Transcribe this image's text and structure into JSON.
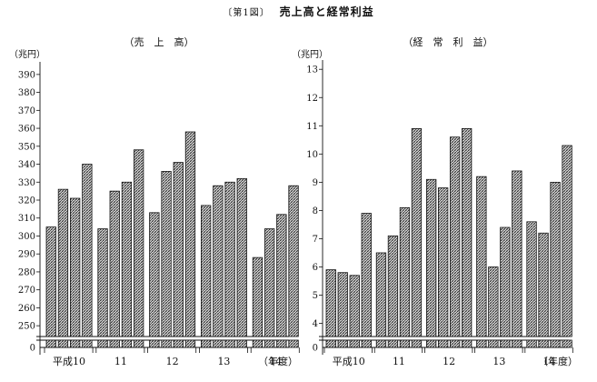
{
  "figure": {
    "tag": "〔第1図〕",
    "title": "売上高と経常利益"
  },
  "chart_data": [
    {
      "type": "bar",
      "title": "（売　上　高）",
      "unit": "（兆円）",
      "xlabel_suffix": "（年度）",
      "year_groups": [
        "平成10",
        "11",
        "12",
        "13",
        "14"
      ],
      "quarters_per_year": 4,
      "axis_break": true,
      "ylim": [
        245,
        395
      ],
      "yticks": [
        250,
        260,
        270,
        280,
        290,
        300,
        310,
        320,
        330,
        340,
        350,
        360,
        370,
        380,
        390
      ],
      "zero_label": "0",
      "values": [
        305,
        326,
        321,
        340,
        304,
        325,
        330,
        348,
        313,
        336,
        341,
        358,
        317,
        328,
        330,
        332,
        288,
        304,
        312,
        328
      ]
    },
    {
      "type": "bar",
      "title": "（経　常　利　益）",
      "unit": "（兆円）",
      "xlabel_suffix": "（年度）",
      "year_groups": [
        "平成10",
        "11",
        "12",
        "13",
        "14"
      ],
      "quarters_per_year": 4,
      "axis_break": true,
      "ylim": [
        3.6,
        13.2
      ],
      "yticks": [
        4,
        5,
        6,
        7,
        8,
        9,
        10,
        11,
        12,
        13
      ],
      "zero_label": "0",
      "values": [
        5.9,
        5.8,
        5.7,
        7.9,
        6.5,
        7.1,
        8.1,
        10.9,
        9.1,
        8.8,
        10.6,
        10.9,
        9.2,
        6.0,
        7.4,
        9.4,
        7.6,
        7.2,
        9.0,
        10.3
      ]
    }
  ]
}
